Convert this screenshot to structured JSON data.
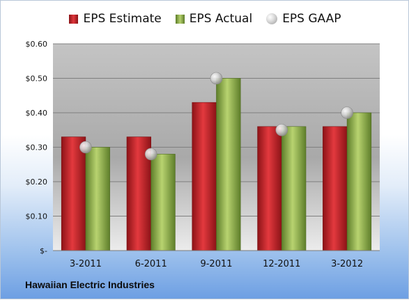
{
  "chart_data": {
    "type": "bar",
    "title": "",
    "xlabel": "",
    "ylabel": "",
    "categories": [
      "3-2011",
      "6-2011",
      "9-2011",
      "12-2011",
      "3-2012"
    ],
    "series": [
      {
        "name": "EPS Estimate",
        "type": "bar",
        "color": "#c8262b",
        "values": [
          0.33,
          0.33,
          0.43,
          0.36,
          0.36
        ]
      },
      {
        "name": "EPS Actual",
        "type": "bar",
        "color": "#9bbb59",
        "values": [
          0.3,
          0.28,
          0.5,
          0.36,
          0.4
        ]
      },
      {
        "name": "EPS GAAP",
        "type": "marker",
        "color": "#c0c0c0",
        "values": [
          0.3,
          0.28,
          0.5,
          0.35,
          0.4
        ]
      }
    ],
    "ylim": [
      0,
      0.6
    ],
    "yticks": [
      0,
      0.1,
      0.2,
      0.3,
      0.4,
      0.5,
      0.6
    ],
    "ytick_labels": [
      "$-",
      "$0.10",
      "$0.20",
      "$0.30",
      "$0.40",
      "$0.50",
      "$0.60"
    ],
    "grid": true,
    "legend_position": "top"
  },
  "legend": {
    "estimate_label": "EPS Estimate",
    "actual_label": "EPS Actual",
    "gaap_label": "EPS GAAP"
  },
  "footer": {
    "company": "Hawaiian Electric Industries"
  }
}
